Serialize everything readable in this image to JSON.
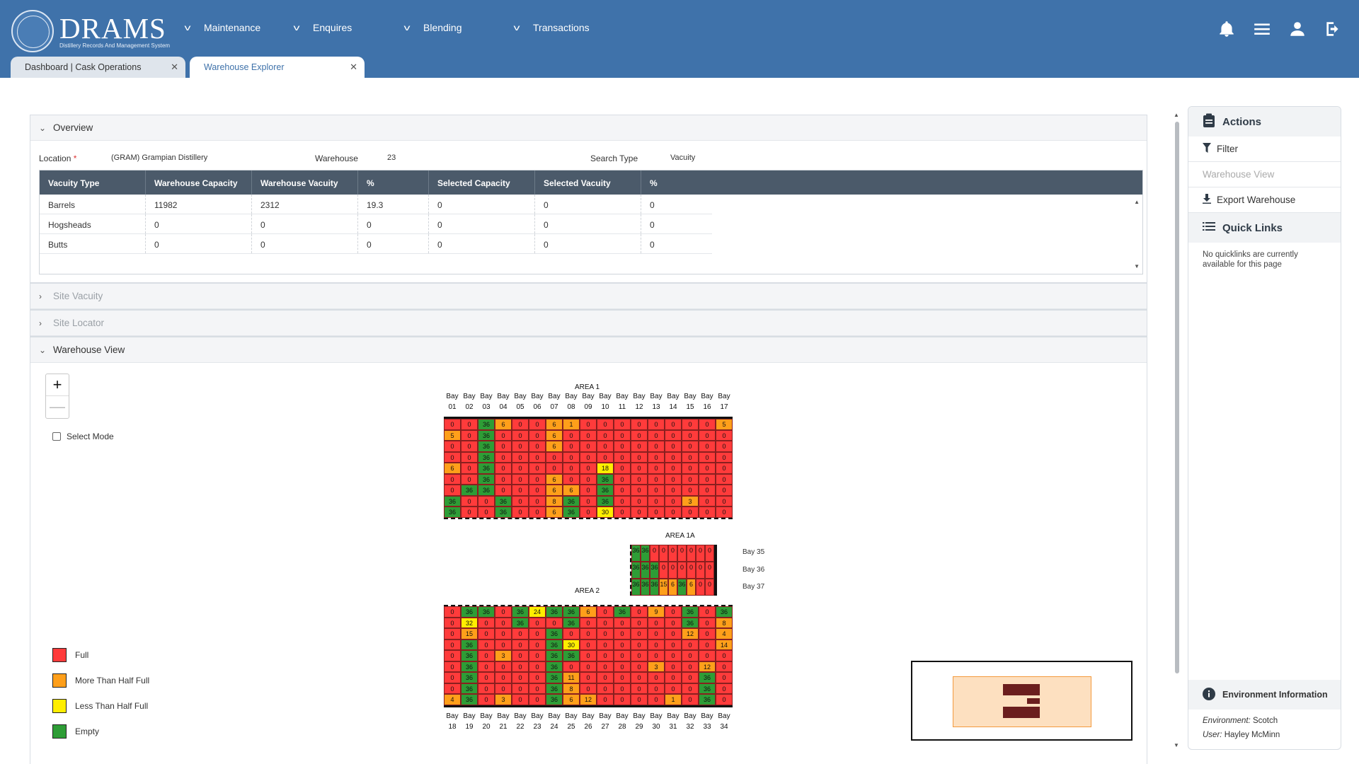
{
  "app": {
    "logo_text": "DRAMS",
    "logo_sub": "Distillery Records And Management System"
  },
  "nav": [
    "Maintenance",
    "Enquires",
    "Blending",
    "Transactions"
  ],
  "tabs": [
    {
      "label": "Dashboard | Cask Operations",
      "active": false
    },
    {
      "label": "Warehouse Explorer",
      "active": true
    }
  ],
  "overview": {
    "title": "Overview",
    "location_label": "Location",
    "location_value": "(GRAM) Grampian Distillery",
    "warehouse_label": "Warehouse",
    "warehouse_value": "23",
    "search_type_label": "Search Type",
    "search_type_value": "Vacuity",
    "columns": [
      "Vacuity Type",
      "Warehouse Capacity",
      "Warehouse Vacuity",
      "%",
      "Selected Capacity",
      "Selected Vacuity",
      "%"
    ],
    "rows": [
      [
        "Barrels",
        "11982",
        "2312",
        "19.3",
        "0",
        "0",
        "0"
      ],
      [
        "Hogsheads",
        "0",
        "0",
        "0",
        "0",
        "0",
        "0"
      ],
      [
        "Butts",
        "0",
        "0",
        "0",
        "0",
        "0",
        "0"
      ]
    ]
  },
  "sections": {
    "site_vacuity": "Site Vacuity",
    "site_locator": "Site Locator",
    "warehouse_view": "Warehouse View"
  },
  "map": {
    "zoom_in": "+",
    "zoom_out": "—",
    "select_mode": "Select Mode",
    "area1_label": "AREA 1",
    "area1a_label": "AREA 1A",
    "area2_label": "AREA 2",
    "bay_word": "Bay",
    "area1_bays": [
      "01",
      "02",
      "03",
      "04",
      "05",
      "06",
      "07",
      "08",
      "09",
      "10",
      "11",
      "12",
      "13",
      "14",
      "15",
      "16",
      "17"
    ],
    "area2_bays": [
      "18",
      "19",
      "20",
      "21",
      "22",
      "23",
      "24",
      "25",
      "26",
      "27",
      "28",
      "29",
      "30",
      "31",
      "32",
      "33",
      "34"
    ],
    "area1a_bays": [
      "Bay 35",
      "Bay 36",
      "Bay 37"
    ],
    "area1_rows": [
      [
        0,
        0,
        36,
        6,
        0,
        0,
        6,
        1,
        0,
        0,
        0,
        0,
        0,
        0,
        0,
        0,
        5
      ],
      [
        5,
        0,
        36,
        0,
        0,
        0,
        6,
        0,
        0,
        0,
        0,
        0,
        0,
        0,
        0,
        0,
        0
      ],
      [
        0,
        0,
        36,
        0,
        0,
        0,
        6,
        0,
        0,
        0,
        0,
        0,
        0,
        0,
        0,
        0,
        0
      ],
      [
        0,
        0,
        36,
        0,
        0,
        0,
        0,
        0,
        0,
        0,
        0,
        0,
        0,
        0,
        0,
        0,
        0
      ],
      [
        6,
        0,
        36,
        0,
        0,
        0,
        0,
        0,
        0,
        18,
        0,
        0,
        0,
        0,
        0,
        0,
        0
      ],
      [
        0,
        0,
        36,
        0,
        0,
        0,
        6,
        0,
        0,
        36,
        0,
        0,
        0,
        0,
        0,
        0,
        0
      ],
      [
        0,
        36,
        36,
        0,
        0,
        0,
        6,
        6,
        0,
        36,
        0,
        0,
        0,
        0,
        0,
        0,
        0
      ],
      [
        36,
        0,
        0,
        36,
        0,
        0,
        8,
        36,
        0,
        36,
        0,
        0,
        0,
        0,
        3,
        0,
        0
      ],
      [
        36,
        0,
        0,
        36,
        0,
        0,
        6,
        36,
        0,
        30,
        0,
        0,
        0,
        0,
        0,
        0,
        0
      ]
    ],
    "area1a_rows": [
      [
        36,
        36,
        0,
        0,
        0,
        0,
        0,
        0,
        0
      ],
      [
        36,
        36,
        36,
        0,
        0,
        0,
        0,
        0,
        0
      ],
      [
        36,
        36,
        36,
        15,
        6,
        36,
        6,
        0,
        0
      ]
    ],
    "area2_rows": [
      [
        0,
        36,
        36,
        0,
        36,
        24,
        36,
        36,
        6,
        0,
        36,
        0,
        9,
        0,
        36,
        0,
        36
      ],
      [
        0,
        32,
        0,
        0,
        36,
        0,
        0,
        36,
        0,
        0,
        0,
        0,
        0,
        0,
        36,
        0,
        8
      ],
      [
        0,
        15,
        0,
        0,
        0,
        0,
        36,
        0,
        0,
        0,
        0,
        0,
        0,
        0,
        12,
        0,
        4
      ],
      [
        0,
        36,
        0,
        0,
        0,
        0,
        36,
        30,
        0,
        0,
        0,
        0,
        0,
        0,
        0,
        0,
        14
      ],
      [
        0,
        36,
        0,
        3,
        0,
        0,
        36,
        36,
        0,
        0,
        0,
        0,
        0,
        0,
        0,
        0,
        0
      ],
      [
        0,
        36,
        0,
        0,
        0,
        0,
        36,
        0,
        0,
        0,
        0,
        0,
        3,
        0,
        0,
        12,
        0
      ],
      [
        0,
        36,
        0,
        0,
        0,
        0,
        36,
        11,
        0,
        0,
        0,
        0,
        0,
        0,
        0,
        36,
        0
      ],
      [
        0,
        36,
        0,
        0,
        0,
        0,
        36,
        8,
        0,
        0,
        0,
        0,
        0,
        0,
        0,
        36,
        0
      ],
      [
        4,
        36,
        0,
        3,
        0,
        0,
        36,
        6,
        12,
        0,
        0,
        0,
        0,
        1,
        0,
        36,
        0
      ]
    ],
    "legend": [
      {
        "label": "Full",
        "color": "#ff3b3b"
      },
      {
        "label": "More Than Half Full",
        "color": "#ff9f1a"
      },
      {
        "label": "Less Than Half Full",
        "color": "#ffee00"
      },
      {
        "label": "Empty",
        "color": "#2e9d36"
      }
    ]
  },
  "sidebar": {
    "actions_title": "Actions",
    "filter": "Filter",
    "warehouse_view": "Warehouse View",
    "export": "Export Warehouse",
    "quick_links_title": "Quick Links",
    "quick_links_note": "No quicklinks are currently available for this page",
    "env_title": "Environment Information",
    "env_label": "Environment:",
    "env_value": "Scotch",
    "user_label": "User:",
    "user_value": "Hayley McMinn"
  }
}
